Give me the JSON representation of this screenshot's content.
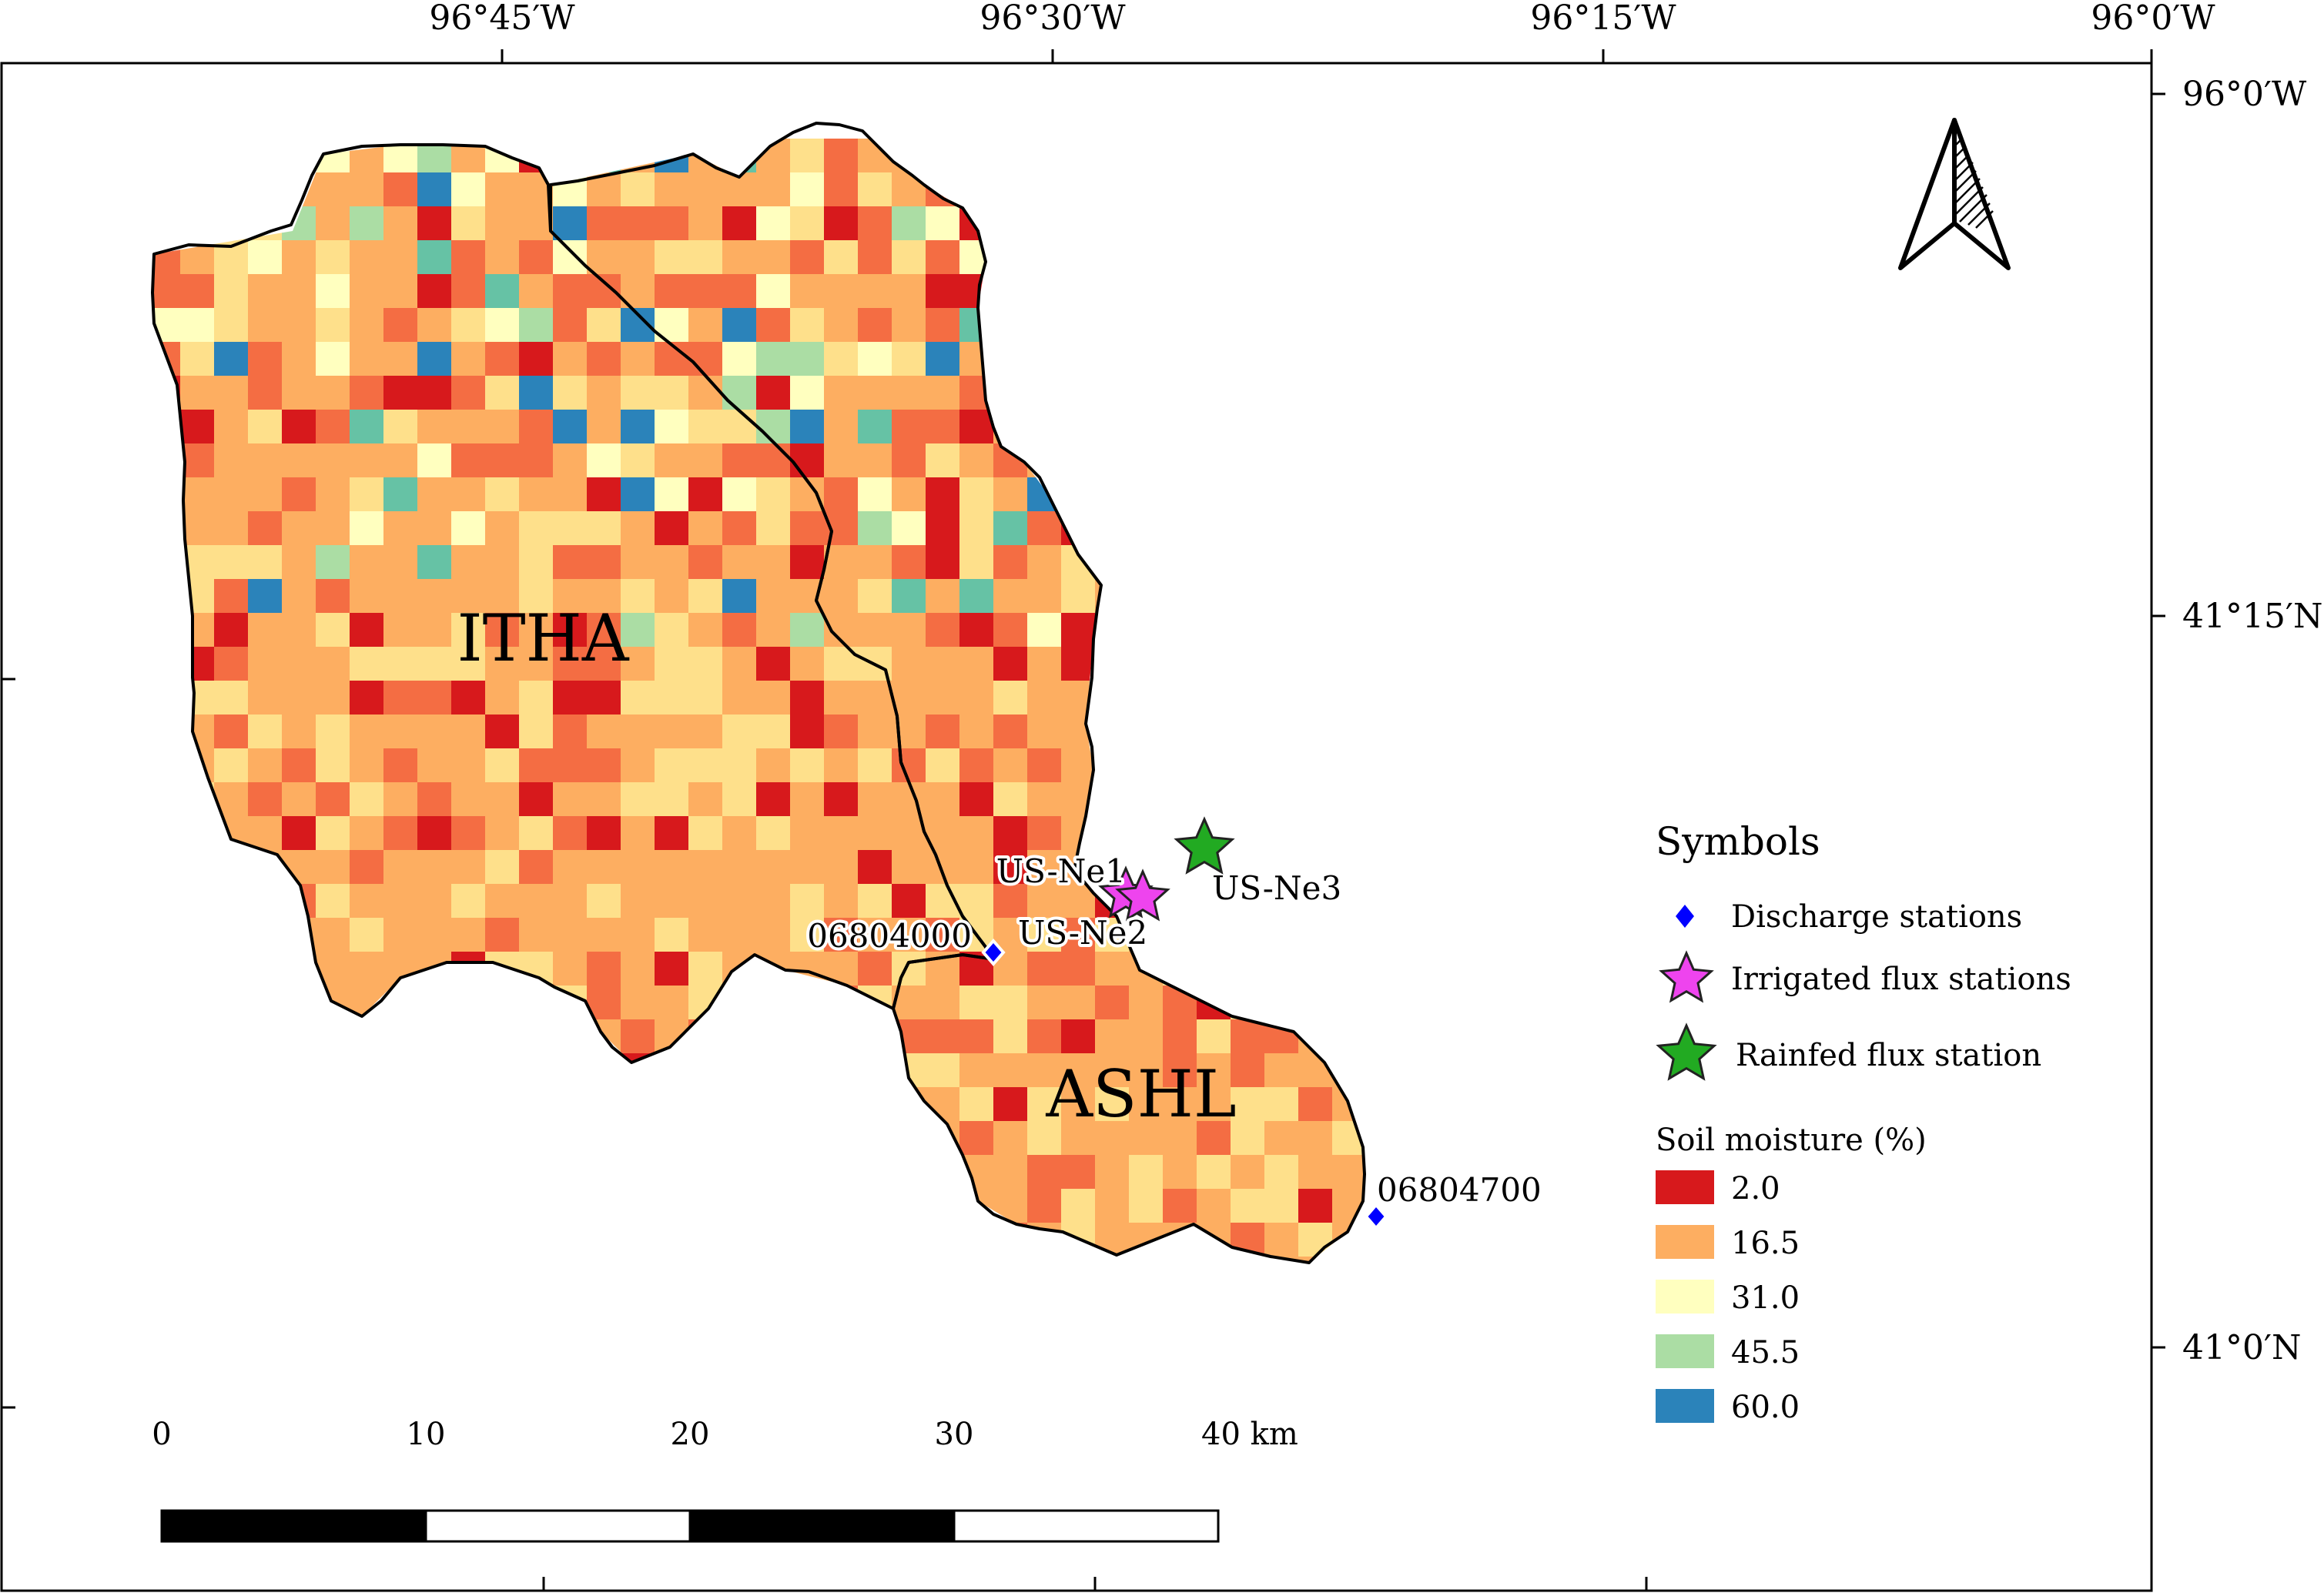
{
  "axes": {
    "top_ticks": [
      "96°45′W",
      "96°30′W",
      "96°15′W",
      "96°0′W"
    ],
    "right_ticks": [
      "96°0′W",
      "41°15′N",
      "41°0′N"
    ]
  },
  "basins": {
    "itha": "ITHA",
    "ashl": "ASHL"
  },
  "soil_moisture_grid": {
    "unit": "%",
    "scale_min": 2.0,
    "scale_max": 60.0
  },
  "stations": {
    "discharge": [
      "06804000",
      "06804700"
    ],
    "irrigated_flux": [
      "US-Ne1",
      "US-Ne2"
    ],
    "rainfed_flux": [
      "US-Ne3"
    ]
  },
  "legend": {
    "symbols_title": "Symbols",
    "discharge_label": "Discharge stations",
    "irrigated_label": "Irrigated flux stations",
    "rainfed_label": "Rainfed flux station",
    "soil_title": "Soil moisture (%)",
    "classes": [
      {
        "label": "2.0",
        "color": "#d7191c"
      },
      {
        "label": "16.5",
        "color": "#fdae61"
      },
      {
        "label": "31.0",
        "color": "#ffffbf"
      },
      {
        "label": "45.5",
        "color": "#abdda4"
      },
      {
        "label": "60.0",
        "color": "#2b83ba"
      }
    ]
  },
  "scale_bar": {
    "labels": [
      "0",
      "10",
      "20",
      "30",
      "40 km"
    ]
  },
  "colors": {
    "discharge_marker": "#0000ff",
    "irrigated_marker": "#ee44ee",
    "rainfed_marker": "#22aa22",
    "basin_outline": "#000000"
  }
}
